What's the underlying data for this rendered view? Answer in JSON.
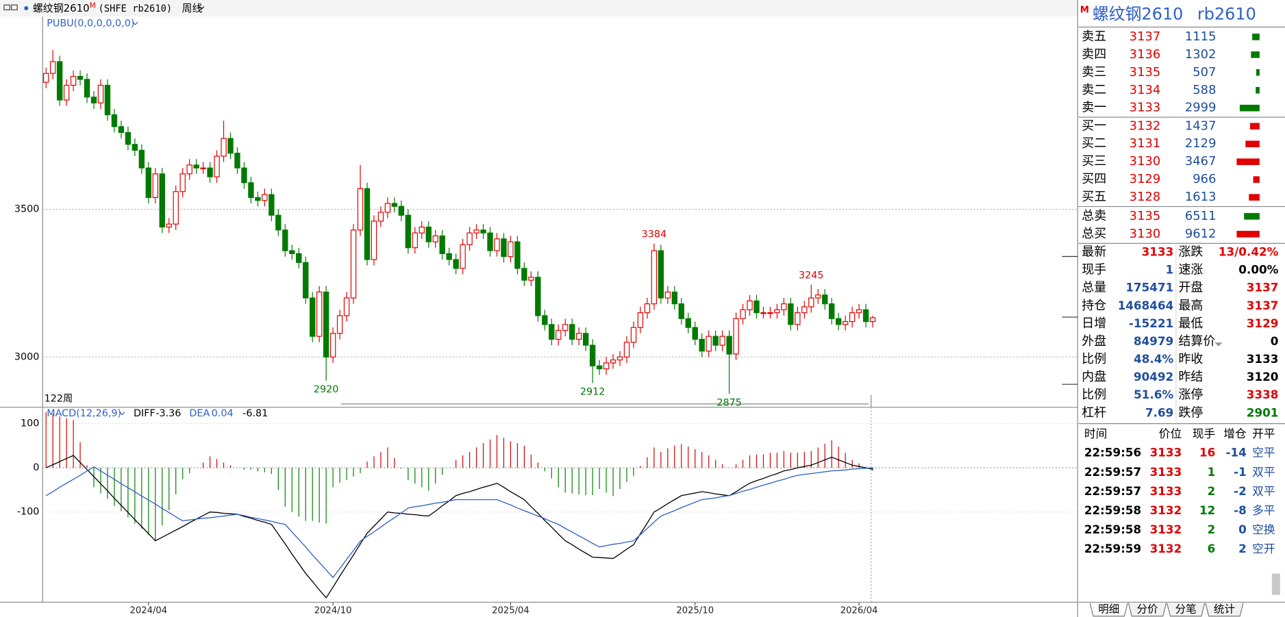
{
  "header": {
    "symbol": "螺纹钢2610",
    "marker": "M",
    "code": "(SHFE rb2610)",
    "period": "周线"
  },
  "chart_data": [
    {
      "type": "candlestick",
      "indicator": "PUBU(0,0,0,0,0,0)",
      "count_label": "122周",
      "up_color": "#e00000",
      "down_color": "#007a00",
      "open": [
        3930,
        3960,
        4000,
        3870,
        3920,
        3950,
        3940,
        3880,
        3860,
        3920,
        3820,
        3780,
        3760,
        3720,
        3700,
        3640,
        3540,
        3620,
        3440,
        3450,
        3560,
        3620,
        3650,
        3640,
        3640,
        3610,
        3680,
        3740,
        3690,
        3640,
        3590,
        3540,
        3530,
        3550,
        3480,
        3430,
        3360,
        3350,
        3320,
        3200,
        3070,
        3220,
        3000,
        3080,
        3140,
        3200,
        3430,
        3570,
        3330,
        3460,
        3490,
        3520,
        3510,
        3480,
        3370,
        3420,
        3440,
        3390,
        3410,
        3350,
        3330,
        3300,
        3380,
        3420,
        3430,
        3420,
        3360,
        3400,
        3340,
        3390,
        3300,
        3260,
        3270,
        3140,
        3110,
        3060,
        3090,
        3110,
        3060,
        3080,
        3040,
        2970,
        2960,
        2980,
        2990,
        3000,
        3050,
        3100,
        3150,
        3180,
        3360,
        3200,
        3220,
        3180,
        3130,
        3100,
        3060,
        3020,
        3070,
        3040,
        3070,
        3010,
        3130,
        3160,
        3190,
        3150,
        3150,
        3150,
        3160,
        3180,
        3110,
        3150,
        3170,
        3200,
        3210,
        3180,
        3130,
        3110,
        3120,
        3150,
        3160,
        3120
      ],
      "high": [
        3980,
        4040,
        4020,
        3940,
        3970,
        3970,
        3960,
        3900,
        3940,
        3940,
        3840,
        3800,
        3780,
        3740,
        3720,
        3660,
        3640,
        3640,
        3470,
        3580,
        3640,
        3670,
        3670,
        3660,
        3660,
        3700,
        3800,
        3760,
        3710,
        3660,
        3610,
        3560,
        3570,
        3570,
        3500,
        3450,
        3380,
        3370,
        3340,
        3220,
        3240,
        3240,
        3100,
        3160,
        3220,
        3450,
        3650,
        3590,
        3480,
        3510,
        3540,
        3540,
        3530,
        3500,
        3440,
        3460,
        3460,
        3430,
        3430,
        3370,
        3350,
        3400,
        3440,
        3450,
        3450,
        3440,
        3420,
        3420,
        3410,
        3410,
        3320,
        3290,
        3290,
        3160,
        3130,
        3110,
        3130,
        3130,
        3100,
        3100,
        3060,
        2990,
        3000,
        3010,
        3020,
        3070,
        3120,
        3170,
        3200,
        3384,
        3380,
        3240,
        3240,
        3200,
        3150,
        3120,
        3080,
        3090,
        3090,
        3090,
        3090,
        3150,
        3180,
        3210,
        3210,
        3170,
        3170,
        3180,
        3200,
        3200,
        3170,
        3190,
        3245,
        3230,
        3230,
        3200,
        3150,
        3140,
        3170,
        3180,
        3180,
        3140
      ],
      "low": [
        3910,
        3940,
        3850,
        3850,
        3900,
        3920,
        3860,
        3840,
        3840,
        3800,
        3760,
        3740,
        3700,
        3680,
        3620,
        3520,
        3520,
        3420,
        3420,
        3430,
        3540,
        3600,
        3620,
        3620,
        3590,
        3590,
        3660,
        3670,
        3620,
        3570,
        3520,
        3510,
        3510,
        3460,
        3410,
        3340,
        3330,
        3300,
        3180,
        3050,
        3050,
        2920,
        2980,
        3060,
        3120,
        3180,
        3410,
        3310,
        3310,
        3440,
        3470,
        3490,
        3460,
        3350,
        3350,
        3400,
        3370,
        3370,
        3330,
        3310,
        3280,
        3280,
        3360,
        3400,
        3400,
        3340,
        3340,
        3320,
        3320,
        3280,
        3240,
        3240,
        3120,
        3090,
        3040,
        3040,
        3070,
        3040,
        3040,
        3020,
        2912,
        2940,
        2940,
        2960,
        2970,
        2980,
        3030,
        3080,
        3130,
        3160,
        3180,
        3180,
        3160,
        3110,
        3080,
        3040,
        3000,
        3000,
        3020,
        3020,
        2875,
        2990,
        3110,
        3140,
        3130,
        3130,
        3130,
        3130,
        3140,
        3090,
        3090,
        3130,
        3150,
        3180,
        3160,
        3110,
        3090,
        3090,
        3100,
        3130,
        3100,
        3100
      ],
      "close": [
        3960,
        4000,
        3870,
        3920,
        3950,
        3940,
        3880,
        3860,
        3920,
        3820,
        3780,
        3760,
        3720,
        3700,
        3640,
        3540,
        3620,
        3440,
        3450,
        3560,
        3620,
        3650,
        3640,
        3640,
        3610,
        3680,
        3740,
        3690,
        3640,
        3590,
        3540,
        3530,
        3550,
        3480,
        3430,
        3360,
        3350,
        3320,
        3200,
        3070,
        3220,
        3000,
        3080,
        3140,
        3200,
        3430,
        3570,
        3330,
        3460,
        3490,
        3520,
        3510,
        3480,
        3370,
        3420,
        3440,
        3390,
        3410,
        3350,
        3330,
        3300,
        3380,
        3420,
        3430,
        3420,
        3360,
        3400,
        3340,
        3390,
        3300,
        3260,
        3270,
        3140,
        3110,
        3060,
        3090,
        3110,
        3060,
        3080,
        3040,
        2970,
        2960,
        2980,
        2990,
        3000,
        3050,
        3100,
        3150,
        3180,
        3360,
        3200,
        3220,
        3180,
        3130,
        3100,
        3060,
        3020,
        3070,
        3040,
        3070,
        3010,
        3130,
        3160,
        3190,
        3150,
        3150,
        3150,
        3160,
        3180,
        3110,
        3150,
        3170,
        3200,
        3210,
        3180,
        3130,
        3110,
        3120,
        3150,
        3160,
        3120,
        3133
      ],
      "annotations": [
        {
          "x": 41,
          "value": 2920
        },
        {
          "x": 80,
          "value": 2912
        },
        {
          "x": 100,
          "value": 2875
        },
        {
          "x": 89,
          "value": 3384
        },
        {
          "x": 112,
          "value": 3245
        }
      ],
      "ylim": [
        2830,
        4153
      ],
      "yticks": [
        3000,
        3500
      ],
      "grid": true,
      "xlim": [
        -0.5,
        151
      ],
      "xticks": [
        {
          "value": 15,
          "label": "2024/04"
        },
        {
          "value": 42,
          "label": "2024/10"
        },
        {
          "value": 68,
          "label": "2025/04"
        },
        {
          "value": 95,
          "label": "2025/10"
        },
        {
          "value": 119,
          "label": "2026/04"
        }
      ]
    },
    {
      "type": "macd",
      "title": "MACD(12,26,9)",
      "ylim": [
        -304,
        137
      ],
      "yticks": [
        100,
        0,
        -100
      ],
      "series": [
        {
          "name": "DIFF",
          "color": "#000000",
          "values": [
            0,
            7,
            14,
            21,
            28,
            12,
            -4,
            -20,
            -36,
            -52,
            -69,
            -85,
            -101,
            -117,
            -133,
            -149,
            -165,
            -157,
            -149,
            -141,
            -133,
            -124,
            -116,
            -108,
            -100,
            -101,
            -103,
            -104,
            -105,
            -110,
            -114,
            -119,
            -123,
            -128,
            -150,
            -172,
            -195,
            -217,
            -239,
            -257,
            -276,
            -294,
            -270,
            -245,
            -221,
            -197,
            -172,
            -148,
            -132,
            -116,
            -100,
            -102,
            -103,
            -105,
            -106,
            -108,
            -109,
            -98,
            -86,
            -75,
            -63,
            -58,
            -54,
            -49,
            -44,
            -40,
            -35,
            -44,
            -54,
            -63,
            -72,
            -88,
            -103,
            -119,
            -134,
            -150,
            -165,
            -174,
            -184,
            -193,
            -202,
            -203,
            -204,
            -205,
            -195,
            -184,
            -174,
            -149,
            -125,
            -100,
            -91,
            -81,
            -72,
            -63,
            -60,
            -57,
            -54,
            -56,
            -59,
            -61,
            -63,
            -54,
            -44,
            -35,
            -29,
            -24,
            -18,
            -13,
            -7,
            -4,
            0,
            3,
            6,
            12,
            18,
            24,
            18,
            12,
            6,
            3,
            0,
            -3.36
          ]
        },
        {
          "name": "DEA",
          "color": "#2f5fc8",
          "values": [
            -63,
            -54,
            -44,
            -35,
            -26,
            -17,
            -7,
            2,
            -7,
            -17,
            -26,
            -36,
            -45,
            -54,
            -64,
            -73,
            -82,
            -92,
            -101,
            -111,
            -120,
            -118,
            -116,
            -114,
            -113,
            -111,
            -109,
            -107,
            -105,
            -108,
            -112,
            -115,
            -118,
            -121,
            -125,
            -128,
            -145,
            -162,
            -179,
            -197,
            -214,
            -231,
            -248,
            -228,
            -207,
            -187,
            -166,
            -155,
            -145,
            -134,
            -123,
            -113,
            -102,
            -91,
            -88,
            -86,
            -83,
            -80,
            -78,
            -75,
            -72,
            -72,
            -72,
            -72,
            -72,
            -72,
            -72,
            -78,
            -84,
            -91,
            -97,
            -103,
            -109,
            -115,
            -122,
            -128,
            -137,
            -145,
            -154,
            -162,
            -171,
            -179,
            -176,
            -173,
            -171,
            -168,
            -165,
            -151,
            -137,
            -123,
            -109,
            -103,
            -97,
            -90,
            -84,
            -78,
            -72,
            -70,
            -68,
            -65,
            -63,
            -58,
            -53,
            -49,
            -44,
            -39,
            -35,
            -30,
            -26,
            -21,
            -17,
            -15,
            -13,
            -11,
            -9,
            -7,
            -6,
            -5,
            -3,
            -2,
            -1,
            0.04
          ]
        }
      ],
      "histogram": {
        "up_color": "#d00000",
        "down_color": "#008000",
        "values": [
          126,
          122,
          116,
          112,
          108,
          58,
          6,
          -44,
          -58,
          -70,
          -86,
          -98,
          -112,
          -126,
          -138,
          -152,
          -166,
          -130,
          -96,
          -60,
          -26,
          -12,
          0,
          12,
          26,
          20,
          12,
          6,
          0,
          -4,
          -4,
          -8,
          -10,
          -14,
          -50,
          -88,
          -100,
          -110,
          -120,
          -120,
          -124,
          -126,
          -44,
          -34,
          -28,
          -20,
          -12,
          14,
          26,
          36,
          46,
          22,
          -2,
          -28,
          -36,
          -44,
          -52,
          -36,
          -16,
          0,
          18,
          28,
          36,
          46,
          56,
          64,
          74,
          68,
          60,
          56,
          50,
          30,
          12,
          -8,
          -24,
          -44,
          -56,
          -58,
          -60,
          -62,
          -62,
          -48,
          -56,
          -64,
          -48,
          -32,
          -18,
          4,
          24,
          46,
          36,
          44,
          50,
          54,
          48,
          42,
          36,
          28,
          18,
          8,
          0,
          8,
          18,
          28,
          30,
          30,
          34,
          34,
          38,
          34,
          34,
          36,
          38,
          46,
          54,
          62,
          48,
          34,
          18,
          10,
          2,
          -6.81
        ]
      },
      "grid": true
    }
  ],
  "quote": {
    "marker": "M",
    "title": "螺纹钢2610",
    "code": "rb2610",
    "ask_color": "#007a00",
    "bid_color": "#e00000",
    "asks": [
      {
        "label": "卖五",
        "price": 3137,
        "volume": 1115
      },
      {
        "label": "卖四",
        "price": 3136,
        "volume": 1302
      },
      {
        "label": "卖三",
        "price": 3135,
        "volume": 507
      },
      {
        "label": "卖二",
        "price": 3134,
        "volume": 588
      },
      {
        "label": "卖一",
        "price": 3133,
        "volume": 2999
      }
    ],
    "bids": [
      {
        "label": "买一",
        "price": 3132,
        "volume": 1437
      },
      {
        "label": "买二",
        "price": 3131,
        "volume": 2129
      },
      {
        "label": "买三",
        "price": 3130,
        "volume": 3467
      },
      {
        "label": "买四",
        "price": 3129,
        "volume": 966
      },
      {
        "label": "买五",
        "price": 3128,
        "volume": 1613
      }
    ],
    "totals": [
      {
        "label": "总卖",
        "price": 3135,
        "volume": 6511,
        "color": "#007a00"
      },
      {
        "label": "总买",
        "price": 3130,
        "volume": 9612,
        "color": "#e00000"
      }
    ],
    "stats": [
      [
        {
          "label": "最新",
          "value": 3133,
          "color": "#e00000"
        },
        {
          "label": "涨跌",
          "value": "13/0.42%",
          "color": "#e00000"
        }
      ],
      [
        {
          "label": "现手",
          "value": 1,
          "color": "#1f4e9c"
        },
        {
          "label": "速涨",
          "value": "0.00%",
          "color": "#000000"
        }
      ],
      [
        {
          "label": "总量",
          "value": 175471,
          "color": "#1f4e9c"
        },
        {
          "label": "开盘",
          "value": 3137,
          "color": "#e00000"
        }
      ],
      [
        {
          "label": "持仓",
          "value": 1468464,
          "color": "#1f4e9c"
        },
        {
          "label": "最高",
          "value": 3137,
          "color": "#e00000"
        }
      ],
      [
        {
          "label": "日增",
          "value": -15221,
          "color": "#1f4e9c"
        },
        {
          "label": "最低",
          "value": 3129,
          "color": "#e00000"
        }
      ],
      [
        {
          "label": "外盘",
          "value": 84979,
          "color": "#1f4e9c"
        },
        {
          "label": "结算价",
          "value": 0,
          "color": "#000000"
        }
      ],
      [
        {
          "label": "比例",
          "value": "48.4%",
          "color": "#1f4e9c"
        },
        {
          "label": "昨收",
          "value": 3133,
          "color": "#000000"
        }
      ],
      [
        {
          "label": "内盘",
          "value": 90492,
          "color": "#1f4e9c"
        },
        {
          "label": "昨结",
          "value": 3120,
          "color": "#000000"
        }
      ],
      [
        {
          "label": "比例",
          "value": "51.6%",
          "color": "#1f4e9c"
        },
        {
          "label": "涨停",
          "value": 3338,
          "color": "#e00000"
        }
      ],
      [
        {
          "label": "杠杆",
          "value": 7.69,
          "color": "#1f4e9c"
        },
        {
          "label": "跌停",
          "value": 2901,
          "color": "#007a00"
        }
      ]
    ],
    "trades": {
      "columns": [
        "时间",
        "价位",
        "现手",
        "增仓",
        "开平"
      ],
      "rows": [
        {
          "time": "22:59:56",
          "price": 3133,
          "volume": 16,
          "change": -14,
          "type": "空平",
          "volume_color": "#e00000"
        },
        {
          "time": "22:59:57",
          "price": 3133,
          "volume": 1,
          "change": -1,
          "type": "双平",
          "volume_color": "#007a00"
        },
        {
          "time": "22:59:57",
          "price": 3133,
          "volume": 2,
          "change": -2,
          "type": "双平",
          "volume_color": "#007a00"
        },
        {
          "time": "22:59:58",
          "price": 3132,
          "volume": 12,
          "change": -8,
          "type": "多平",
          "volume_color": "#007a00"
        },
        {
          "time": "22:59:58",
          "price": 3132,
          "volume": 2,
          "change": 0,
          "type": "空换",
          "volume_color": "#007a00"
        },
        {
          "time": "22:59:59",
          "price": 3132,
          "volume": 6,
          "change": 2,
          "type": "空开",
          "volume_color": "#007a00"
        }
      ]
    },
    "tabs": [
      "明细",
      "分价",
      "分笔",
      "统计"
    ]
  }
}
